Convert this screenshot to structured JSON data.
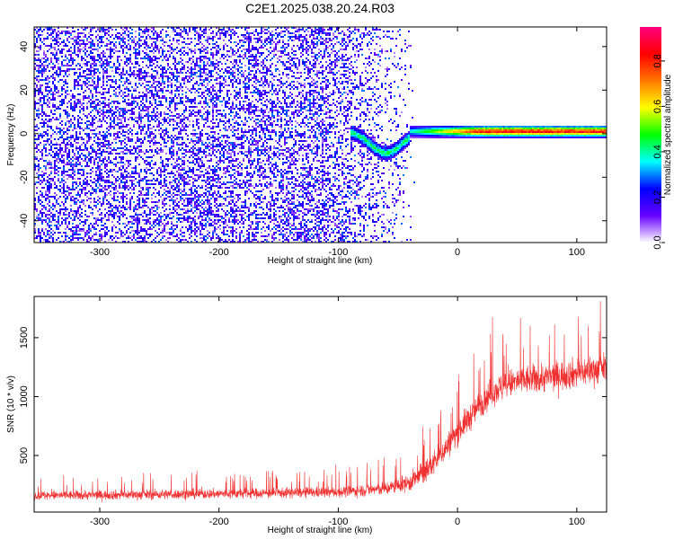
{
  "title": "C2E1.2025.038.20.24.R03",
  "chart_data": [
    {
      "type": "heatmap",
      "xlabel": "Height of straight line (km)",
      "ylabel": "Frequency (Hz)",
      "xlim": [
        -355,
        125
      ],
      "ylim": [
        -50,
        49
      ],
      "x_ticks": [
        -300,
        -200,
        -100,
        0,
        100
      ],
      "y_ticks": [
        -40,
        -20,
        0,
        20,
        40
      ],
      "colorbar": {
        "label": "Normalized spectral amplitude",
        "range": [
          0,
          0.95
        ],
        "ticks": [
          0.0,
          0.2,
          0.4,
          0.6,
          0.8
        ],
        "colormap": [
          "#ffffff",
          "#6600ff",
          "#0000ff",
          "#00ffff",
          "#00ff00",
          "#ffff00",
          "#ff7700",
          "#ff0000",
          "#ff0080"
        ]
      },
      "features": {
        "noise_region_x": [
          -355,
          -45
        ],
        "noise_amplitude": [
          0.05,
          0.3
        ],
        "signal_dip": {
          "x": [
            -90,
            -40
          ],
          "frequency_min": -10,
          "amplitude": 0.4
        },
        "signal_band": {
          "x": [
            -40,
            125
          ],
          "frequency": 1,
          "amplitude": [
            0.4,
            0.95
          ]
        }
      }
    },
    {
      "type": "line",
      "color": "#f03030",
      "xlabel": "Height of straight line (km)",
      "ylabel": "SNR (10 * v/v)",
      "xlim": [
        -355,
        125
      ],
      "ylim": [
        20,
        1850
      ],
      "x_ticks": [
        -300,
        -200,
        -100,
        0,
        100
      ],
      "y_ticks": [
        500,
        1000,
        1500
      ],
      "trend": {
        "x": [
          -355,
          -300,
          -200,
          -100,
          -60,
          -40,
          -25,
          -10,
          0,
          10,
          20,
          30,
          50,
          80,
          100,
          125
        ],
        "y": [
          160,
          165,
          175,
          190,
          220,
          270,
          380,
          560,
          700,
          820,
          950,
          1050,
          1130,
          1170,
          1200,
          1250
        ]
      },
      "noise_amplitude": {
        "x": [
          -355,
          -100,
          -50,
          -25,
          0,
          30,
          125
        ],
        "y": [
          70,
          80,
          110,
          180,
          200,
          220,
          230
        ]
      }
    }
  ]
}
